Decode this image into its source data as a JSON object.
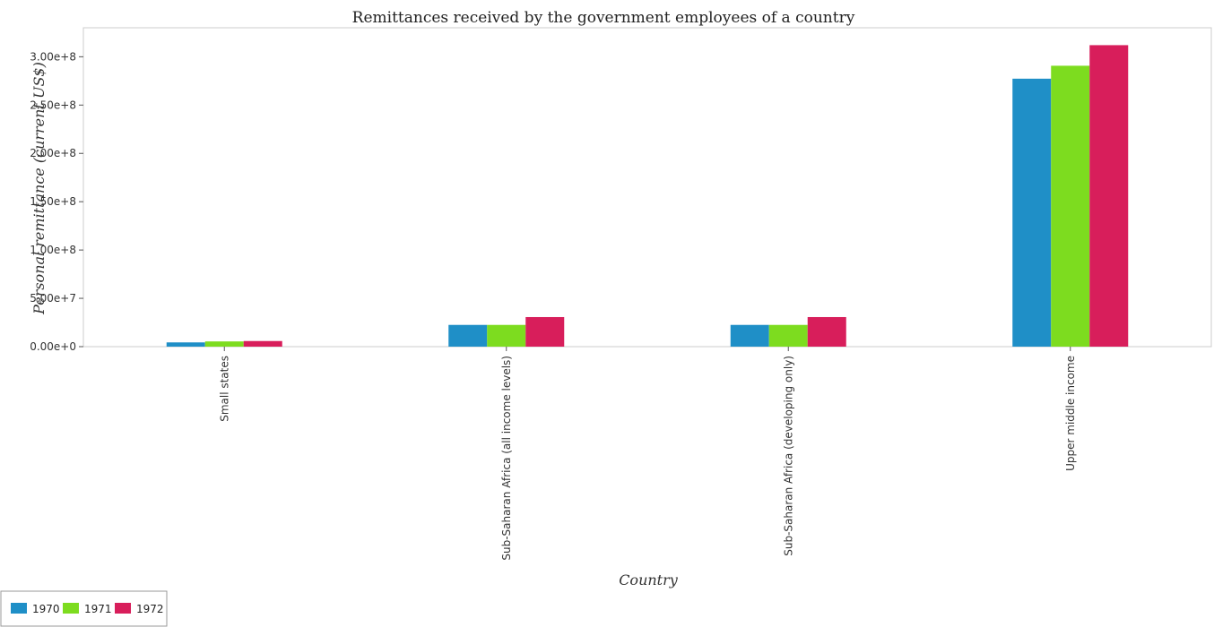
{
  "chart_data": {
    "type": "bar",
    "title": "Remittances received by the government employees of a country",
    "xlabel": "Country",
    "ylabel": "Personal remittance (current US$)",
    "categories": [
      "Small states",
      "Sub-Saharan Africa (all income levels)",
      "Sub-Saharan Africa (developing only)",
      "Upper middle income"
    ],
    "series": [
      {
        "name": "1970",
        "color": "#1f8fc7",
        "values": [
          4400000,
          22500000,
          22500000,
          277300000
        ]
      },
      {
        "name": "1971",
        "color": "#7ddc1f",
        "values": [
          5400000,
          22500000,
          22500000,
          290700000
        ]
      },
      {
        "name": "1972",
        "color": "#d81e5b",
        "values": [
          5800000,
          30600000,
          30600000,
          312000000
        ]
      }
    ],
    "ylim": [
      0,
      330000000
    ],
    "yticks": [
      0,
      50000000,
      100000000,
      150000000,
      200000000,
      250000000,
      300000000
    ],
    "ytick_labels": [
      "0.00e+0",
      "5.00e+7",
      "1.00e+8",
      "1.50e+8",
      "2.00e+8",
      "2.50e+8",
      "3.00e+8"
    ],
    "grid": false,
    "legend_position": "bottom-left"
  }
}
